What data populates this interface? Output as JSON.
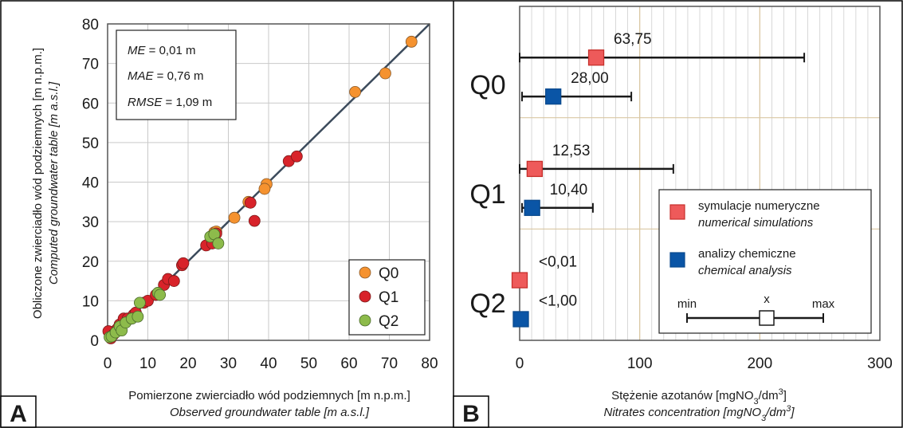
{
  "chart_data": [
    {
      "panel": "A",
      "type": "scatter",
      "xlabel": "Pomierzone zwierciadło wód podziemnych [m n.p.m.]",
      "xlabel_en": "Observed groundwater table [m a.s.l.]",
      "ylabel": "Obliczone zwierciadło wód podziemnych [m n.p.m.]",
      "ylabel_en": "Computed groundwater table [m a.s.l.]",
      "xlim": [
        0,
        80
      ],
      "ylim": [
        0,
        80
      ],
      "xticks": [
        "0",
        "10",
        "20",
        "30",
        "40",
        "50",
        "60",
        "70",
        "80"
      ],
      "yticks": [
        "0",
        "10",
        "20",
        "30",
        "40",
        "50",
        "60",
        "70",
        "80"
      ],
      "grid": true,
      "reference_line": "1:1",
      "stats": [
        {
          "name": "ME",
          "value": " = 0,01 m"
        },
        {
          "name": "MAE",
          "value": " = 0,76 m"
        },
        {
          "name": "RMSE",
          "value": " = 1,09 m"
        }
      ],
      "legend_position": "bottom-right",
      "series": [
        {
          "name": "Q0",
          "color": "#f5922f",
          "points": [
            [
              75.5,
              75.5
            ],
            [
              69,
              67.5
            ],
            [
              61.5,
              62.8
            ],
            [
              39.5,
              39.5
            ],
            [
              39,
              38.3
            ],
            [
              31.5,
              31
            ],
            [
              35,
              35
            ],
            [
              26.5,
              27.3
            ],
            [
              27,
              27.5
            ],
            [
              2,
              2.5
            ],
            [
              1,
              1.2
            ]
          ]
        },
        {
          "name": "Q1",
          "color": "#d8232a",
          "points": [
            [
              0.2,
              2.3
            ],
            [
              0.8,
              0.5
            ],
            [
              1.5,
              1.5
            ],
            [
              2.5,
              3
            ],
            [
              3,
              4
            ],
            [
              4,
              5.5
            ],
            [
              5,
              5.5
            ],
            [
              6.5,
              6.5
            ],
            [
              7,
              7
            ],
            [
              9,
              9.5
            ],
            [
              10,
              10
            ],
            [
              12,
              11.5
            ],
            [
              14,
              14
            ],
            [
              15,
              15.5
            ],
            [
              16.5,
              15
            ],
            [
              18.5,
              19
            ],
            [
              18.8,
              19.5
            ],
            [
              24.5,
              24
            ],
            [
              26,
              24.5
            ],
            [
              27,
              27
            ],
            [
              35.5,
              34.8
            ],
            [
              36.5,
              30.2
            ],
            [
              45,
              45.3
            ],
            [
              47,
              46.5
            ]
          ]
        },
        {
          "name": "Q2",
          "color": "#8dbb4b",
          "points": [
            [
              0.5,
              0.8
            ],
            [
              1,
              1
            ],
            [
              2,
              2
            ],
            [
              3,
              3.5
            ],
            [
              3.5,
              2.5
            ],
            [
              4.5,
              4.5
            ],
            [
              6,
              5.5
            ],
            [
              7.5,
              6
            ],
            [
              8,
              9.5
            ],
            [
              12.5,
              12
            ],
            [
              13,
              11.5
            ],
            [
              25.5,
              26.2
            ],
            [
              26.5,
              26.8
            ],
            [
              27.5,
              24.5
            ]
          ]
        }
      ]
    },
    {
      "panel": "B",
      "type": "scatter",
      "xlabel": "Stężenie azotanów [mgNO",
      "xlabel_en": "Nitrates concentration [mgNO",
      "xlabel_sub": "3",
      "xlabel_mid": "/dm",
      "xlabel_sup": "3",
      "xlabel_end": "]",
      "xlim": [
        0,
        300
      ],
      "xticks": [
        "0",
        "100",
        "200",
        "300"
      ],
      "grid": true,
      "groups": [
        "Q0",
        "Q1",
        "Q2"
      ],
      "series": [
        {
          "name": "symulacje numeryczne",
          "name_en": "numerical simulations",
          "color": "#ee5a5a",
          "edge": "#c7302c",
          "points": [
            {
              "group": "Q0",
              "mean": 63.75,
              "min": 0,
              "max": 237,
              "label": "63,75"
            },
            {
              "group": "Q1",
              "mean": 12.53,
              "min": 0,
              "max": 128,
              "label": "12,53"
            },
            {
              "group": "Q2",
              "mean": 0.01,
              "label": "<0,01"
            }
          ]
        },
        {
          "name": "analizy chemiczne",
          "name_en": "chemical analysis",
          "color": "#0a55a6",
          "edge": "#0a4a8e",
          "points": [
            {
              "group": "Q0",
              "mean": 28.0,
              "min": 2,
              "max": 93,
              "label": "28,00"
            },
            {
              "group": "Q1",
              "mean": 10.4,
              "min": 2,
              "max": 61,
              "label": "10,40"
            },
            {
              "group": "Q2",
              "mean": 1.0,
              "label": "<1,00"
            }
          ]
        }
      ],
      "key": {
        "min": "min",
        "mean": "x",
        "max": "max"
      }
    }
  ]
}
